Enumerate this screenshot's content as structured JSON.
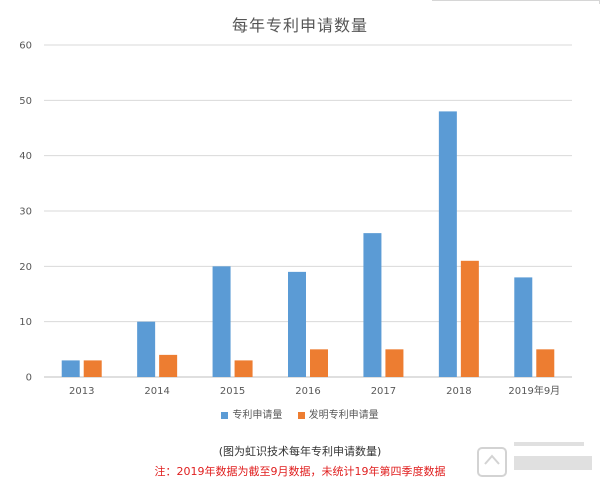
{
  "chart_data": {
    "type": "bar",
    "title": "每年专利申请数量",
    "categories": [
      "2013",
      "2014",
      "2015",
      "2016",
      "2017",
      "2018",
      "2019年9月"
    ],
    "series": [
      {
        "name": "专利申请量",
        "values": [
          3,
          10,
          20,
          19,
          26,
          48,
          18
        ],
        "color": "#5b9bd5"
      },
      {
        "name": "发明专利申请量",
        "values": [
          3,
          4,
          3,
          5,
          5,
          21,
          5
        ],
        "color": "#ed7d31"
      }
    ],
    "ylim": [
      0,
      60
    ],
    "yticks": [
      "0",
      "10",
      "20",
      "30",
      "40",
      "50",
      "60"
    ],
    "grid": true,
    "legend_position": "bottom"
  },
  "caption": "(图为虹识技术每年专利申请数量)",
  "note": "注：2019年数据为截至9月数据，未统计19年第四季度数据",
  "colors": {
    "gridline": "#d9d9d9",
    "axis_text": "#595959",
    "note_red": "#e02020"
  }
}
